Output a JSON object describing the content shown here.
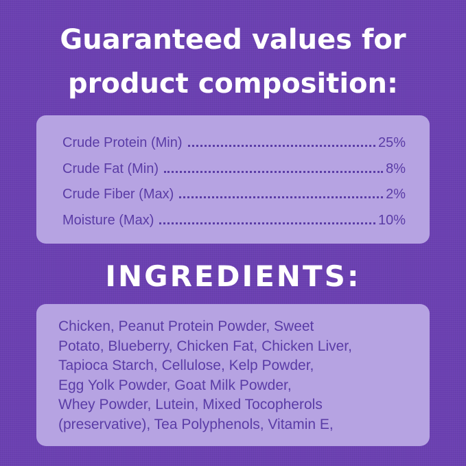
{
  "header": {
    "title_lines": [
      "Guaranteed values for",
      "product composition:"
    ]
  },
  "analysis": {
    "rows": [
      {
        "label": "Crude Protein (Min)",
        "value": "25%"
      },
      {
        "label": "Crude Fat (Min)",
        "value": "8%"
      },
      {
        "label": "Crude Fiber (Max)",
        "value": "2%"
      },
      {
        "label": "Moisture (Max)",
        "value": "10%"
      }
    ]
  },
  "ingredients": {
    "heading": "INGREDIENTS:",
    "lines": [
      "Chicken, Peanut Protein Powder, Sweet",
      "Potato, Blueberry, Chicken Fat, Chicken Liver,",
      "Tapioca Starch, Cellulose, Kelp Powder,",
      "Egg Yolk Powder, Goat Milk Powder,",
      "Whey Powder, Lutein, Mixed Tocopherols",
      "(preservative), Tea Polyphenols, Vitamin E,"
    ]
  }
}
